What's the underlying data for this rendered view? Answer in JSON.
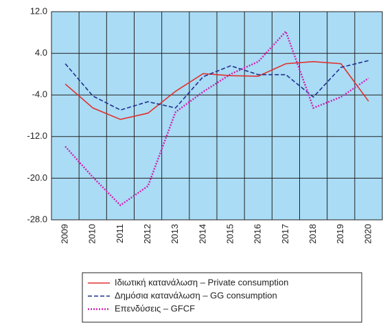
{
  "chart_data": {
    "type": "line",
    "categories": [
      "2009",
      "2010",
      "2011",
      "2012",
      "2013",
      "2014",
      "2015",
      "2016",
      "2017",
      "2018",
      "2019",
      "2020"
    ],
    "series": [
      {
        "name": "Ιδιωτική κατανάλωση – Private consumption",
        "color": "#e0302a",
        "dash": "solid",
        "values": [
          -1.9,
          -6.5,
          -8.7,
          -7.5,
          -3.3,
          0.1,
          -0.3,
          -0.4,
          2.0,
          2.4,
          2.0,
          -5.2
        ]
      },
      {
        "name": "Δημόσια κατανάλωση – GG consumption",
        "color": "#1f2f8f",
        "dash": "dashed",
        "values": [
          2.0,
          -4.2,
          -6.9,
          -5.3,
          -6.5,
          -0.5,
          1.6,
          -0.1,
          -0.1,
          -4.4,
          1.3,
          2.6
        ]
      },
      {
        "name": "Επενδύσεις – GFCF",
        "color": "#d020b0",
        "dash": "dotted",
        "values": [
          -13.9,
          -19.8,
          -25.2,
          -21.5,
          -7.3,
          -3.4,
          0.0,
          2.4,
          8.2,
          -6.5,
          -4.4,
          -0.8
        ]
      }
    ],
    "ylim": [
      -28,
      12
    ],
    "yticks": [
      {
        "value": 12,
        "label": "12.0"
      },
      {
        "value": 4,
        "label": "4.0"
      },
      {
        "value": -4,
        "label": "-4.0"
      },
      {
        "value": -12,
        "label": "-12.0"
      },
      {
        "value": -20,
        "label": "-20.0"
      },
      {
        "value": -28,
        "label": "-28.0"
      }
    ],
    "grid": true,
    "background": "#aadcf5"
  }
}
